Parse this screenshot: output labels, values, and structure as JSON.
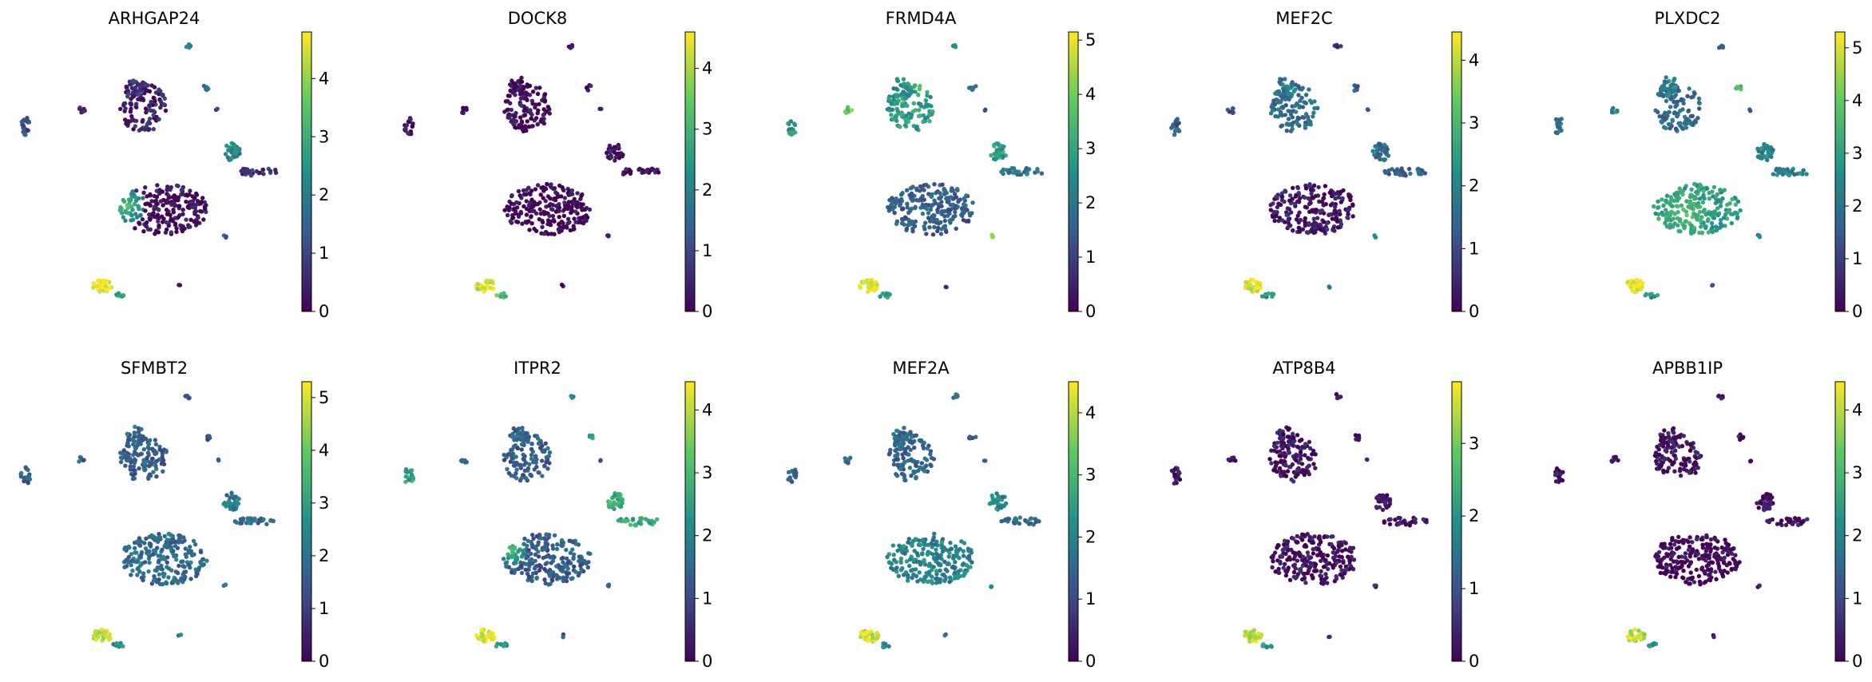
{
  "figure": {
    "colormap": "viridis",
    "colors": [
      "#440154",
      "#3b528b",
      "#21918c",
      "#5ec962",
      "#fde725"
    ],
    "rows": 2,
    "cols": 5
  },
  "chart_data": [
    {
      "type": "scatter",
      "title": "ARHGAP24",
      "colorbar": {
        "min": 0,
        "max": 4.8,
        "ticks": [
          0,
          1,
          2,
          3,
          4
        ],
        "tick_labels": [
          "0",
          "1",
          "2",
          "3",
          "4"
        ]
      }
    },
    {
      "type": "scatter",
      "title": "DOCK8",
      "colorbar": {
        "min": 0,
        "max": 4.6,
        "ticks": [
          0,
          1,
          2,
          3,
          4
        ],
        "tick_labels": [
          "0",
          "1",
          "2",
          "3",
          "4"
        ]
      }
    },
    {
      "type": "scatter",
      "title": "FRMD4A",
      "colorbar": {
        "min": 0,
        "max": 5.15,
        "ticks": [
          0,
          1,
          2,
          3,
          4,
          5
        ],
        "tick_labels": [
          "0",
          "1",
          "2",
          "3",
          "4",
          "5"
        ]
      }
    },
    {
      "type": "scatter",
      "title": "MEF2C",
      "colorbar": {
        "min": 0,
        "max": 4.45,
        "ticks": [
          0,
          1,
          2,
          3,
          4
        ],
        "tick_labels": [
          "0",
          "1",
          "2",
          "3",
          "4"
        ]
      }
    },
    {
      "type": "scatter",
      "title": "PLXDC2",
      "colorbar": {
        "min": 0,
        "max": 5.3,
        "ticks": [
          0,
          1,
          2,
          3,
          4,
          5
        ],
        "tick_labels": [
          "0",
          "1",
          "2",
          "3",
          "4",
          "5"
        ]
      }
    },
    {
      "type": "scatter",
      "title": "SFMBT2",
      "colorbar": {
        "min": 0,
        "max": 5.3,
        "ticks": [
          0,
          1,
          2,
          3,
          4,
          5
        ],
        "tick_labels": [
          "0",
          "1",
          "2",
          "3",
          "4",
          "5"
        ]
      }
    },
    {
      "type": "scatter",
      "title": "ITPR2",
      "colorbar": {
        "min": 0,
        "max": 4.45,
        "ticks": [
          0,
          1,
          2,
          3,
          4
        ],
        "tick_labels": [
          "0",
          "1",
          "2",
          "3",
          "4"
        ]
      }
    },
    {
      "type": "scatter",
      "title": "MEF2A",
      "colorbar": {
        "min": 0,
        "max": 4.5,
        "ticks": [
          0,
          1,
          2,
          3,
          4
        ],
        "tick_labels": [
          "0",
          "1",
          "2",
          "3",
          "4"
        ]
      }
    },
    {
      "type": "scatter",
      "title": "ATP8B4",
      "colorbar": {
        "min": 0,
        "max": 3.85,
        "ticks": [
          0,
          1,
          2,
          3
        ],
        "tick_labels": [
          "0",
          "1",
          "2",
          "3"
        ]
      }
    },
    {
      "type": "scatter",
      "title": "APBB1IP",
      "colorbar": {
        "min": 0,
        "max": 4.45,
        "ticks": [
          0,
          1,
          2,
          3,
          4
        ],
        "tick_labels": [
          "0",
          "1",
          "2",
          "3",
          "4"
        ]
      }
    }
  ]
}
